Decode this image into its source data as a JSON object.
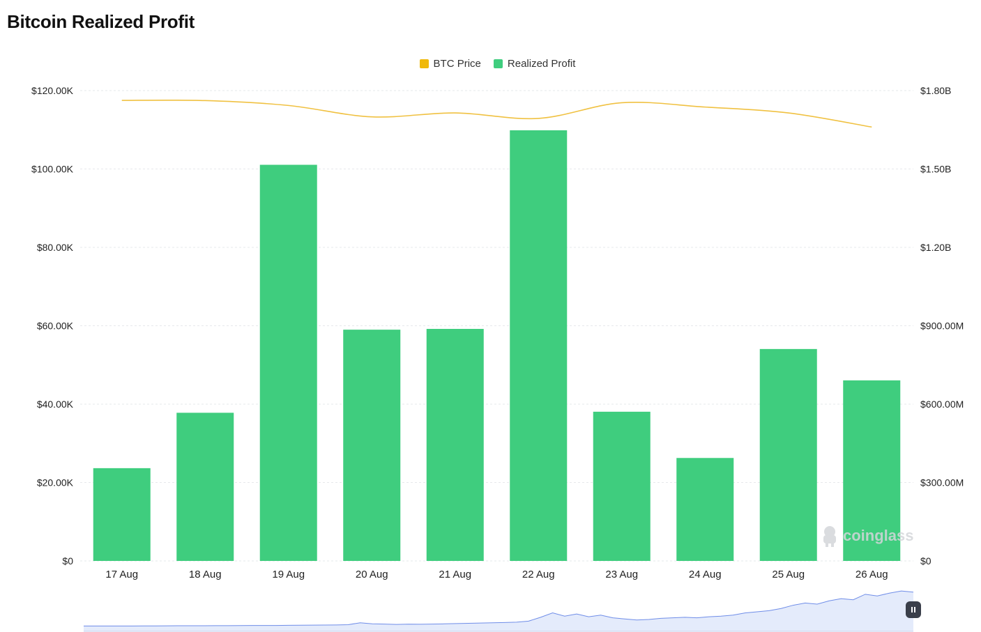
{
  "page": {
    "title": "Bitcoin Realized Profit",
    "watermark": "coinglass"
  },
  "legend": [
    {
      "label": "BTC Price",
      "color": "#f0b90b"
    },
    {
      "label": "Realized Profit",
      "color": "#3fcd7e"
    }
  ],
  "colors": {
    "bar": "#3fcd7e",
    "price_line": "#f0c141",
    "grid": "#e6e8eb",
    "navigator_line": "#6f8de8",
    "navigator_fill": "#e4ebfb"
  },
  "chart_data": {
    "type": "bar",
    "title": "Bitcoin Realized Profit",
    "categories": [
      "17 Aug",
      "18 Aug",
      "19 Aug",
      "20 Aug",
      "21 Aug",
      "22 Aug",
      "23 Aug",
      "24 Aug",
      "25 Aug",
      "26 Aug"
    ],
    "series": [
      {
        "name": "Realized Profit",
        "type": "bar",
        "axis": "right",
        "values": [
          355000000,
          567000000,
          1516000000,
          885000000,
          888000000,
          1648000000,
          571000000,
          394000000,
          811000000,
          691000000
        ]
      },
      {
        "name": "BTC Price",
        "type": "line",
        "axis": "left",
        "values": [
          117500,
          117450,
          116200,
          113300,
          114300,
          112900,
          116900,
          115800,
          114300,
          110700
        ]
      }
    ],
    "left_axis": {
      "ticks": [
        0,
        20000,
        40000,
        60000,
        80000,
        100000,
        120000
      ],
      "tick_labels": [
        "$0",
        "$20.00K",
        "$40.00K",
        "$60.00K",
        "$80.00K",
        "$100.00K",
        "$120.00K"
      ],
      "ylim": [
        0,
        120000
      ]
    },
    "right_axis": {
      "ticks": [
        0,
        300000000,
        600000000,
        900000000,
        1200000000,
        1500000000,
        1800000000
      ],
      "tick_labels": [
        "$0",
        "$300.00M",
        "$600.00M",
        "$900.00M",
        "$1.20B",
        "$1.50B",
        "$1.80B"
      ],
      "ylim": [
        0,
        1800000000
      ]
    },
    "grid": true,
    "legend_position": "top-center",
    "navigator": {
      "values": [
        2,
        2,
        2,
        2,
        2,
        2.2,
        2.3,
        2.4,
        2.5,
        2.6,
        2.6,
        2.7,
        2.7,
        2.8,
        3,
        3,
        3.1,
        3.3,
        3.5,
        3.6,
        3.8,
        4,
        4.5,
        8,
        6,
        5.5,
        5,
        5.4,
        5.2,
        5.5,
        6,
        6.5,
        7,
        7.5,
        8,
        8.5,
        9,
        11,
        18,
        26,
        20,
        24,
        19,
        22,
        17,
        15,
        13,
        14,
        16,
        17,
        18,
        17,
        19,
        20,
        22,
        26,
        28,
        30,
        34,
        40,
        44,
        42,
        48,
        52,
        50,
        60,
        57,
        62,
        66,
        64
      ],
      "ylim": [
        0,
        70
      ]
    }
  }
}
